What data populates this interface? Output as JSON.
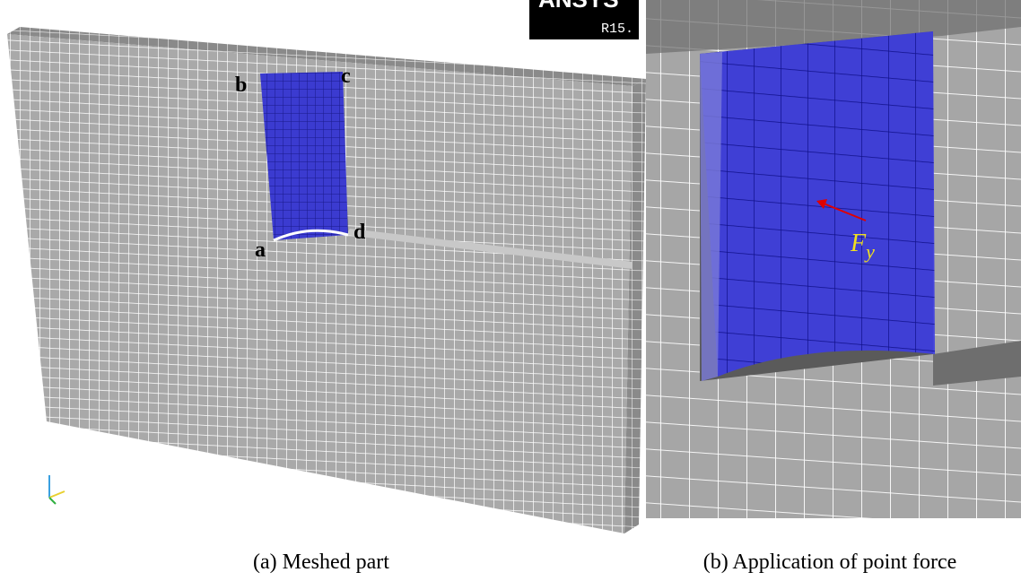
{
  "left_panel": {
    "logo": "ANSYS",
    "version": "R15.",
    "corner_labels": [
      "a",
      "b",
      "c",
      "d"
    ],
    "caption": "(a) Meshed part"
  },
  "right_panel": {
    "force_label": {
      "symbol": "F",
      "subscript": "y"
    },
    "caption": "(b) Application of point force"
  }
}
